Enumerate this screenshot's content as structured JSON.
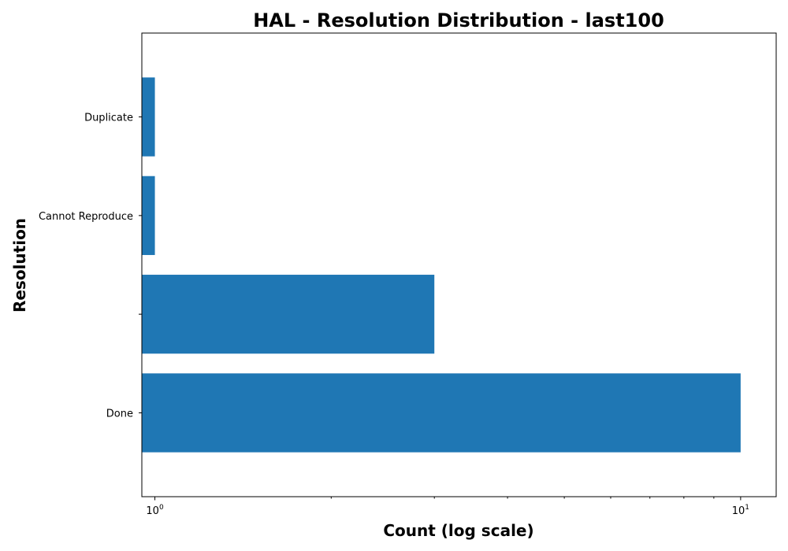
{
  "chart_data": {
    "type": "bar",
    "orientation": "horizontal",
    "title": "HAL - Resolution Distribution - last100",
    "xlabel": "Count (log scale)",
    "ylabel": "Resolution",
    "x_scale": "log",
    "xlim": [
      0.95,
      11.5
    ],
    "categories": [
      "Done",
      "",
      "Cannot Reproduce",
      "Duplicate"
    ],
    "values": [
      10,
      3,
      1,
      1
    ],
    "x_major_ticks": [
      {
        "value": 1,
        "base": "10",
        "exp": "0"
      },
      {
        "value": 10,
        "base": "10",
        "exp": "1"
      }
    ],
    "color": "#1f77b4",
    "grid": false,
    "legend": "none"
  }
}
